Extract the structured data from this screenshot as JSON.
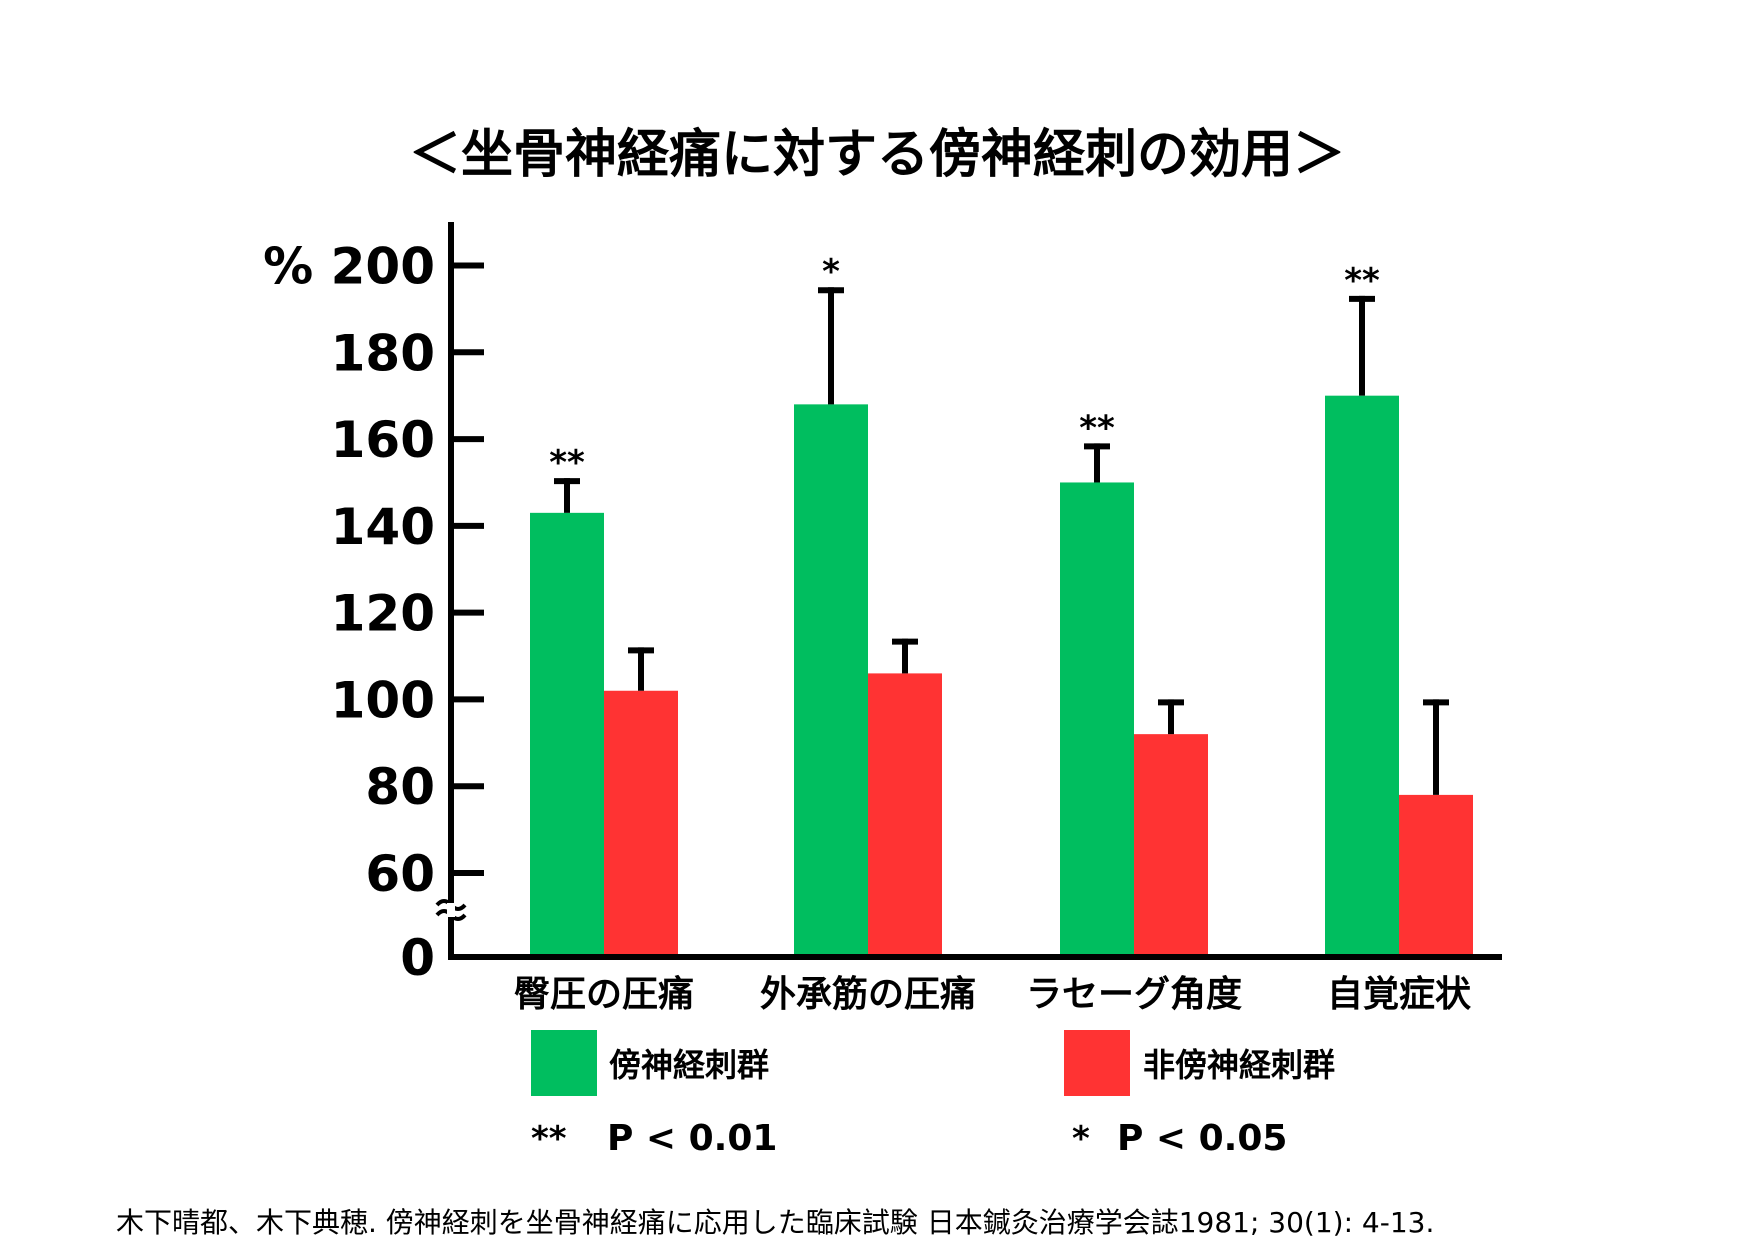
{
  "chart_data": {
    "type": "bar",
    "title": "＜坐骨神経痛に対する傍神経刺の効用＞",
    "ylabel": "%",
    "ylim": [
      0,
      200
    ],
    "axis_break": "0–60",
    "yticks": [
      200,
      180,
      160,
      140,
      120,
      100,
      80,
      60,
      0
    ],
    "categories": [
      "臀圧の圧痛",
      "外承筋の圧痛",
      "ラセーグ角度",
      "自覚症状"
    ],
    "series": [
      {
        "name": "傍神経刺群",
        "color": "#00BE5F",
        "values": [
          143,
          168,
          150,
          170
        ],
        "error_upper": [
          151,
          195,
          159,
          193
        ],
        "significance": [
          "**",
          "*",
          "**",
          "**"
        ]
      },
      {
        "name": "非傍神経刺群",
        "color": "#FF3333",
        "values": [
          102,
          106,
          92,
          78
        ],
        "error_upper": [
          112,
          114,
          100,
          100
        ]
      }
    ],
    "legend": {
      "position": "bottom"
    },
    "notes": [
      {
        "mark": "**",
        "text": "P < 0.01"
      },
      {
        "mark": "*",
        "text": "P < 0.05"
      }
    ],
    "grid": false
  },
  "citation": "木下晴都、木下典穂. 傍神経刺を坐骨神経痛に応用した臨床試験 日本鍼灸治療学会誌1981; 30(1): 4-13."
}
